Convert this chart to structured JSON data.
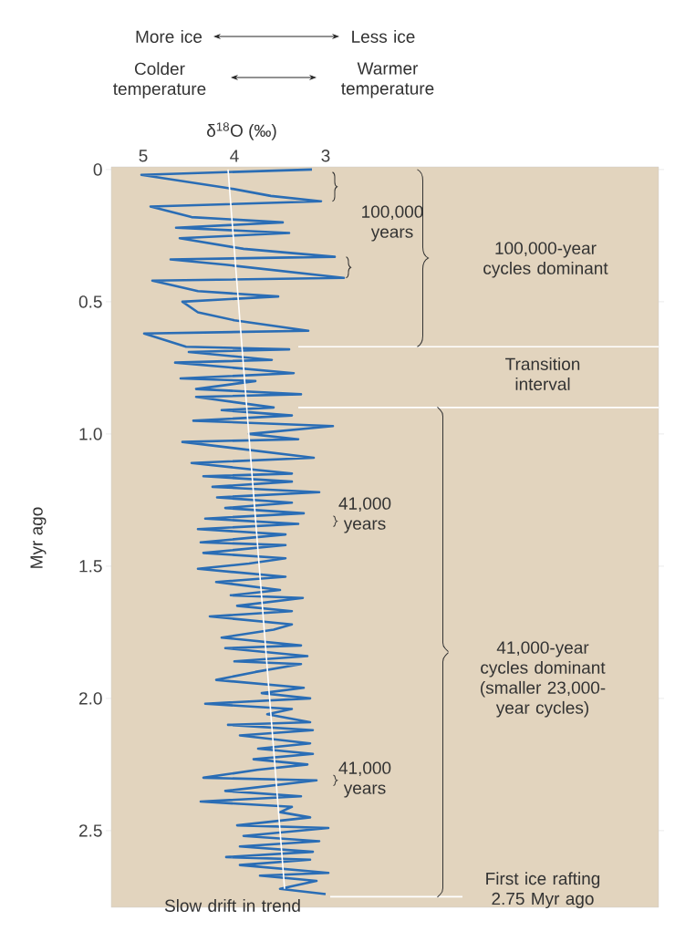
{
  "chart_data": {
    "type": "line",
    "xlabel": "δ$^{18}$O (‰)",
    "ylabel": "Myr ago",
    "xlim": [
      5.35,
      -0.65
    ],
    "xticks": [
      5,
      4,
      3
    ],
    "ylim": [
      2.79,
      -0.01
    ],
    "yticks": [
      0,
      0.5,
      {
        "value": 1,
        "label": "1.0"
      },
      1.5,
      {
        "value": 2,
        "label": "2.0"
      },
      2.5
    ],
    "series": [
      {
        "type": "line",
        "color": "#2a6db5",
        "x": [
          3.15,
          5.02,
          4.07,
          3.6,
          3.05,
          4.92,
          4.47,
          3.47,
          4.64,
          3.4,
          4.6,
          3.9,
          2.9,
          4.7,
          4.1,
          2.8,
          4.9,
          4.4,
          3.52,
          4.57,
          4.4,
          4.0,
          3.19,
          4.99,
          4.53,
          3.4,
          4.5,
          3.59,
          4.65,
          3.35,
          4.59,
          3.77,
          4.42,
          3.27,
          4.42,
          3.57,
          4.14,
          3.37,
          4.45,
          2.92,
          3.84,
          3.3,
          4.57,
          3.13,
          4.47,
          3.37,
          4.34,
          3.37,
          4.24,
          3.07,
          4.19,
          3.37,
          4.1,
          3.24,
          4.32,
          3.3,
          4.4,
          3.44,
          4.37,
          3.44,
          4.34,
          3.44,
          3.84,
          4.4,
          3.44,
          4.2,
          3.5,
          4.04,
          3.25,
          3.97,
          3.37,
          4.27,
          3.37,
          3.57,
          4.14,
          3.27,
          4.1,
          3.2,
          4.0,
          3.27,
          3.77,
          4.2,
          3.24,
          3.7,
          3.17,
          4.32,
          3.37,
          3.64,
          3.17,
          4.07,
          3.14,
          3.94,
          3.17,
          3.74,
          3.14,
          3.79,
          3.2,
          3.75,
          4.34,
          3.1,
          4.1,
          3.27,
          4.37,
          3.37,
          3.5,
          3.17,
          3.97,
          2.97,
          3.9,
          3.07,
          3.94,
          3.14,
          4.09,
          3.17,
          3.94,
          2.97,
          3.72,
          3.1,
          3.5,
          3.0
        ],
        "values": [
          0.0,
          0.02,
          0.07,
          0.1,
          0.12,
          0.14,
          0.18,
          0.2,
          0.22,
          0.24,
          0.26,
          0.3,
          0.33,
          0.34,
          0.36,
          0.41,
          0.42,
          0.46,
          0.48,
          0.5,
          0.54,
          0.57,
          0.61,
          0.62,
          0.67,
          0.68,
          0.69,
          0.72,
          0.73,
          0.77,
          0.79,
          0.8,
          0.83,
          0.85,
          0.86,
          0.9,
          0.91,
          0.93,
          0.95,
          0.97,
          1.0,
          1.02,
          1.03,
          1.09,
          1.11,
          1.15,
          1.16,
          1.18,
          1.2,
          1.22,
          1.24,
          1.26,
          1.28,
          1.3,
          1.32,
          1.34,
          1.36,
          1.38,
          1.41,
          1.42,
          1.45,
          1.47,
          1.49,
          1.51,
          1.54,
          1.56,
          1.59,
          1.61,
          1.62,
          1.65,
          1.67,
          1.69,
          1.72,
          1.74,
          1.77,
          1.8,
          1.81,
          1.84,
          1.86,
          1.87,
          1.9,
          1.93,
          1.96,
          1.98,
          2.0,
          2.02,
          2.04,
          2.06,
          2.09,
          2.1,
          2.12,
          2.14,
          2.17,
          2.19,
          2.21,
          2.23,
          2.25,
          2.27,
          2.3,
          2.31,
          2.35,
          2.37,
          2.39,
          2.41,
          2.43,
          2.45,
          2.48,
          2.49,
          2.52,
          2.54,
          2.56,
          2.58,
          2.6,
          2.61,
          2.63,
          2.66,
          2.67,
          2.69,
          2.72,
          2.74
        ]
      },
      {
        "type": "line",
        "color": "#ffffff",
        "x": [
          4.07,
          3.45
        ],
        "values": [
          0,
          2.72
        ]
      }
    ],
    "ref_lines": [
      {
        "axis": "y",
        "value": 0.67,
        "color": "#ffffff"
      },
      {
        "axis": "y",
        "value": 0.9,
        "color": "#ffffff"
      },
      {
        "axis": "y",
        "value": 2.75,
        "color": "#ffffff",
        "label": "First ice rafting 2.75 Myr ago"
      }
    ],
    "annotations": [
      "More ice",
      "Less ice",
      "Colder temperature",
      "Warmer temperature",
      "100,000 years",
      "100,000-year cycles dominant",
      "Transition interval",
      "41,000 years",
      "41,000-year cycles dominant (smaller 23,000-year cycles)",
      "41,000 years",
      "Slow drift in trend"
    ]
  }
}
